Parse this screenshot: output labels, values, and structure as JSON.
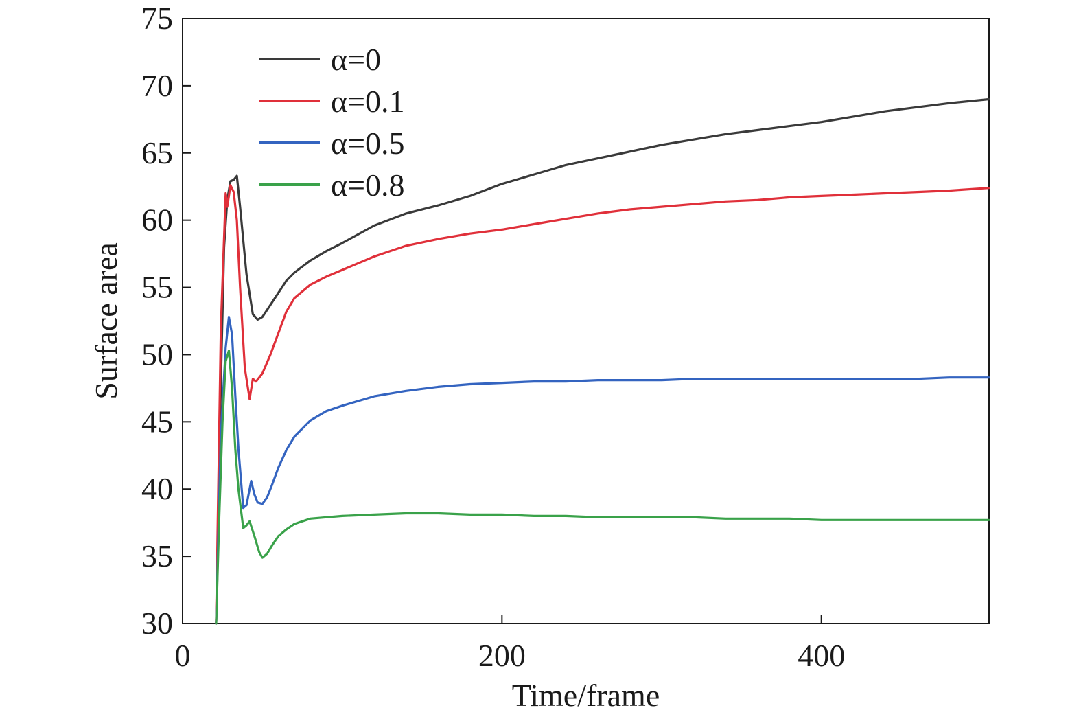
{
  "chart_data": {
    "type": "line",
    "title": "",
    "xlabel": "Time/frame",
    "ylabel": "Surface area",
    "xlim": [
      0,
      505
    ],
    "ylim": [
      30,
      75
    ],
    "xticks": [
      0,
      200,
      400
    ],
    "yticks": [
      30,
      35,
      40,
      45,
      50,
      55,
      60,
      65,
      70,
      75
    ],
    "grid": false,
    "legend_position": "top-left",
    "series": [
      {
        "name": "α=0",
        "color": "#3a3a3a",
        "x": [
          21,
          24,
          26,
          28,
          30,
          32,
          34,
          36,
          40,
          44,
          47,
          50,
          55,
          60,
          65,
          70,
          80,
          90,
          100,
          120,
          140,
          160,
          180,
          200,
          220,
          240,
          260,
          280,
          300,
          320,
          340,
          360,
          380,
          400,
          420,
          440,
          460,
          480,
          505
        ],
        "y": [
          30,
          48,
          58,
          61.5,
          62.9,
          63,
          63.3,
          61,
          56,
          53,
          52.6,
          52.8,
          53.7,
          54.6,
          55.5,
          56.1,
          57,
          57.7,
          58.3,
          59.6,
          60.5,
          61.1,
          61.8,
          62.7,
          63.4,
          64.1,
          64.6,
          65.1,
          65.6,
          66,
          66.4,
          66.7,
          67,
          67.3,
          67.7,
          68.1,
          68.4,
          68.7,
          69
        ]
      },
      {
        "name": "α=0.1",
        "color": "#e0303a",
        "x": [
          21,
          24,
          27,
          28,
          30,
          32,
          34,
          36,
          39,
          42,
          44,
          46,
          50,
          55,
          60,
          65,
          70,
          80,
          90,
          100,
          120,
          140,
          160,
          180,
          200,
          220,
          240,
          260,
          280,
          300,
          320,
          340,
          360,
          380,
          400,
          420,
          440,
          460,
          480,
          505
        ],
        "y": [
          30,
          52,
          62,
          61,
          62.6,
          62.1,
          60,
          55,
          49,
          46.7,
          48.2,
          48,
          48.6,
          50,
          51.6,
          53.2,
          54.2,
          55.2,
          55.8,
          56.3,
          57.3,
          58.1,
          58.6,
          59,
          59.3,
          59.7,
          60.1,
          60.5,
          60.8,
          61,
          61.2,
          61.4,
          61.5,
          61.7,
          61.8,
          61.9,
          62,
          62.1,
          62.2,
          62.4
        ]
      },
      {
        "name": "α=0.5",
        "color": "#3464c0",
        "x": [
          21,
          24,
          27,
          29,
          31,
          33,
          35,
          38,
          40,
          43,
          45,
          47,
          50,
          53,
          56,
          60,
          65,
          70,
          80,
          90,
          100,
          120,
          140,
          160,
          180,
          200,
          220,
          240,
          260,
          280,
          300,
          320,
          340,
          360,
          380,
          400,
          420,
          440,
          460,
          480,
          505
        ],
        "y": [
          30,
          44,
          50.5,
          52.8,
          51.5,
          47,
          43,
          38.6,
          38.8,
          40.6,
          39.6,
          39,
          38.9,
          39.4,
          40.3,
          41.6,
          42.9,
          43.9,
          45.1,
          45.8,
          46.2,
          46.9,
          47.3,
          47.6,
          47.8,
          47.9,
          48,
          48,
          48.1,
          48.1,
          48.1,
          48.2,
          48.2,
          48.2,
          48.2,
          48.2,
          48.2,
          48.2,
          48.2,
          48.3,
          48.3
        ]
      },
      {
        "name": "α=0.8",
        "color": "#3aa24a",
        "x": [
          21,
          23,
          25,
          27,
          29,
          31,
          33,
          35,
          38,
          40,
          42,
          45,
          48,
          50,
          53,
          56,
          60,
          65,
          70,
          80,
          90,
          100,
          120,
          140,
          160,
          180,
          200,
          220,
          240,
          260,
          280,
          300,
          320,
          340,
          360,
          380,
          400,
          420,
          440,
          460,
          480,
          505
        ],
        "y": [
          30,
          38,
          45,
          49.5,
          50.3,
          47.5,
          43,
          40,
          37.1,
          37.3,
          37.6,
          36.5,
          35.3,
          34.9,
          35.2,
          35.8,
          36.5,
          37,
          37.4,
          37.8,
          37.9,
          38,
          38.1,
          38.2,
          38.2,
          38.1,
          38.1,
          38,
          38,
          37.9,
          37.9,
          37.9,
          37.9,
          37.8,
          37.8,
          37.8,
          37.7,
          37.7,
          37.7,
          37.7,
          37.7,
          37.7
        ]
      }
    ]
  }
}
